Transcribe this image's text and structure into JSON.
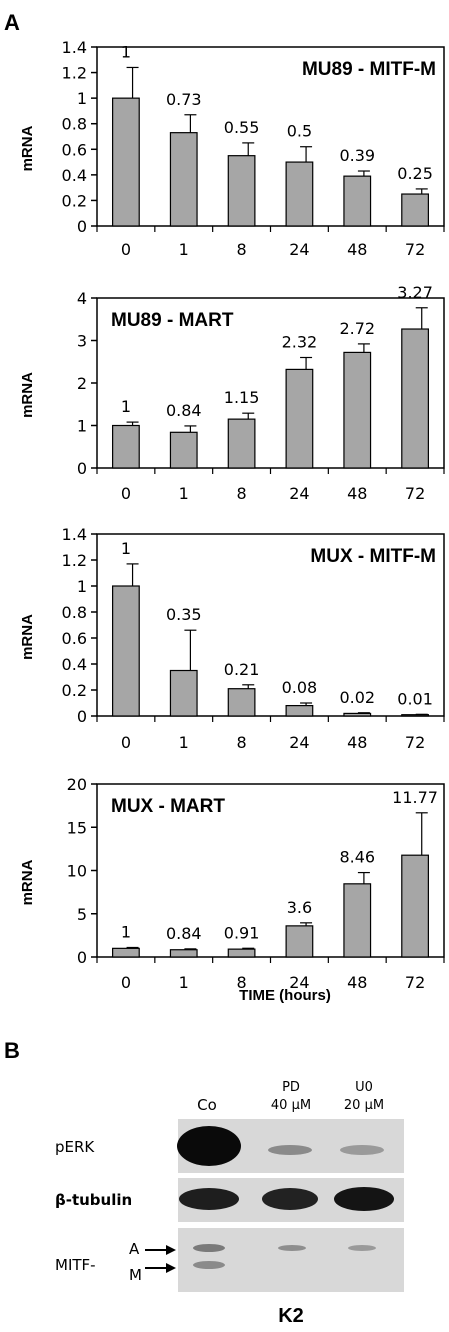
{
  "panel_a_label": "A",
  "panel_b_label": "B",
  "x_axis_title": "TIME (hours)",
  "chart_data": [
    {
      "type": "bar",
      "title": "MU89 - MITF-M",
      "ylabel": "mRNA",
      "categories": [
        "0",
        "1",
        "8",
        "24",
        "48",
        "72"
      ],
      "values": [
        1,
        0.73,
        0.55,
        0.5,
        0.39,
        0.25
      ],
      "data_labels": [
        "1",
        "0.73",
        "0.55",
        "0.5",
        "0.39",
        "0.25"
      ],
      "errors": [
        0.24,
        0.14,
        0.1,
        0.12,
        0.04,
        0.04
      ],
      "ylim": [
        0,
        1.4
      ],
      "yticks": [
        "0",
        "0.2",
        "0.4",
        "0.6",
        "0.8",
        "1",
        "1.2",
        "1.4"
      ],
      "bar_color": "#a6a6a6",
      "title_position": "top-right"
    },
    {
      "type": "bar",
      "title": "MU89 - MART",
      "ylabel": "mRNA",
      "categories": [
        "0",
        "1",
        "8",
        "24",
        "48",
        "72"
      ],
      "values": [
        1,
        0.84,
        1.15,
        2.32,
        2.72,
        3.27
      ],
      "data_labels": [
        "1",
        "0.84",
        "1.15",
        "2.32",
        "2.72",
        "3.27"
      ],
      "errors": [
        0.08,
        0.15,
        0.14,
        0.28,
        0.2,
        0.5
      ],
      "ylim": [
        0,
        4
      ],
      "yticks": [
        "0",
        "1",
        "2",
        "3",
        "4"
      ],
      "bar_color": "#a6a6a6",
      "title_position": "top-left"
    },
    {
      "type": "bar",
      "title": "MUX - MITF-M",
      "ylabel": "mRNA",
      "categories": [
        "0",
        "1",
        "8",
        "24",
        "48",
        "72"
      ],
      "values": [
        1,
        0.35,
        0.21,
        0.08,
        0.02,
        0.01
      ],
      "data_labels": [
        "1",
        "0.35",
        "0.21",
        "0.08",
        "0.02",
        "0.01"
      ],
      "errors": [
        0.17,
        0.31,
        0.03,
        0.02,
        0.005,
        0.003
      ],
      "ylim": [
        0,
        1.4
      ],
      "yticks": [
        "0",
        "0.2",
        "0.4",
        "0.6",
        "0.8",
        "1",
        "1.2",
        "1.4"
      ],
      "bar_color": "#a6a6a6",
      "title_position": "top-right"
    },
    {
      "type": "bar",
      "title": "MUX - MART",
      "ylabel": "mRNA",
      "categories": [
        "0",
        "1",
        "8",
        "24",
        "48",
        "72"
      ],
      "values": [
        1,
        0.84,
        0.91,
        3.6,
        8.46,
        11.77
      ],
      "data_labels": [
        "1",
        "0.84",
        "0.91",
        "3.6",
        "8.46",
        "11.77"
      ],
      "errors": [
        0.1,
        0.1,
        0.1,
        0.35,
        1.3,
        4.9
      ],
      "ylim": [
        0,
        20
      ],
      "yticks": [
        "0",
        "5",
        "10",
        "15",
        "20"
      ],
      "bar_color": "#a6a6a6",
      "title_position": "top-left"
    }
  ],
  "blot": {
    "columns": [
      "Co",
      "PD",
      "40 µM",
      "U0",
      "20 µM"
    ],
    "rows": [
      "pERK",
      "β-tubulin",
      "MITF-"
    ],
    "isoforms": [
      "A",
      "M"
    ],
    "cell_line": "K2"
  }
}
